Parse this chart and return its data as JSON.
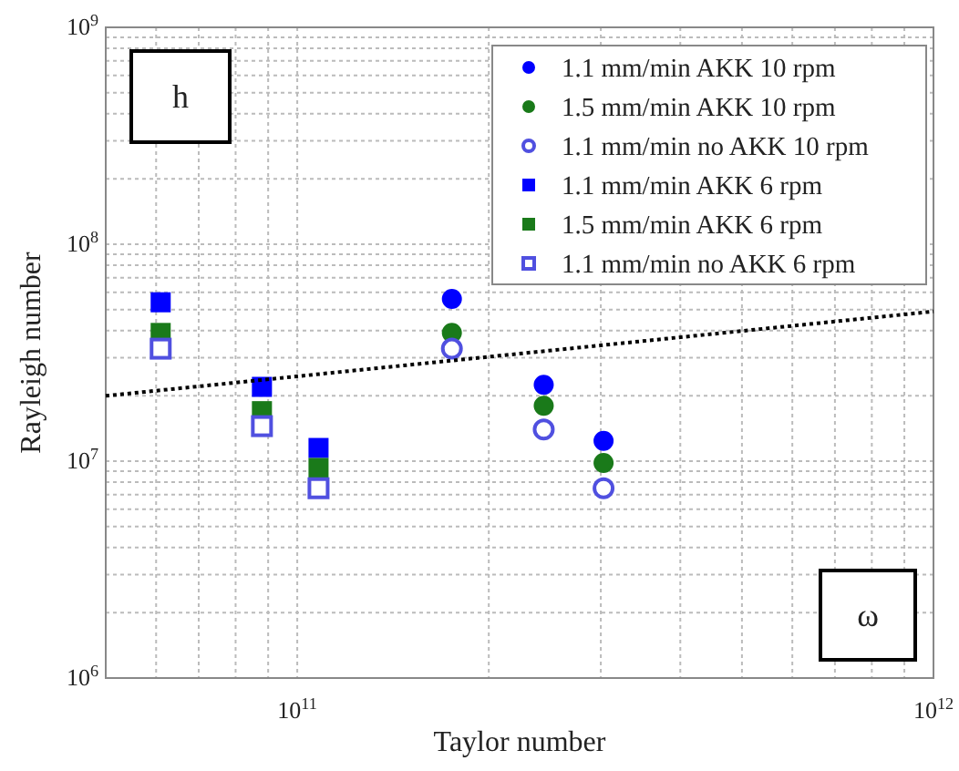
{
  "chart_data": {
    "type": "scatter",
    "xlabel": "Taylor number",
    "ylabel": "Rayleigh number",
    "log": "xy",
    "grid": true,
    "legend": "top right",
    "xlim": [
      50000000000.0,
      1000000000000.0
    ],
    "xticks": [
      {
        "value": 60000000000.0,
        "label": null
      },
      {
        "value": 70000000000.0,
        "label": null
      },
      {
        "value": 80000000000.0,
        "label": null
      },
      {
        "value": 90000000000.0,
        "label": null
      },
      {
        "value": 100000000000.0,
        "label": "10$^{11}$"
      },
      {
        "value": 200000000000.0,
        "label": null
      },
      {
        "value": 300000000000.0,
        "label": null
      },
      {
        "value": 400000000000.0,
        "label": null
      },
      {
        "value": 500000000000.0,
        "label": null
      },
      {
        "value": 600000000000.0,
        "label": null
      },
      {
        "value": 700000000000.0,
        "label": null
      },
      {
        "value": 800000000000.0,
        "label": null
      },
      {
        "value": 900000000000.0,
        "label": null
      },
      {
        "value": 1000000000000.0,
        "label": "10$^{12}$"
      }
    ],
    "ylim": [
      1000000.0,
      1000000000.0
    ],
    "yticks": [
      {
        "value": 1000000.0,
        "label": "10$^{6}$"
      },
      {
        "value": 2000000.0,
        "label": null
      },
      {
        "value": 3000000.0,
        "label": null
      },
      {
        "value": 4000000.0,
        "label": null
      },
      {
        "value": 5000000.0,
        "label": null
      },
      {
        "value": 6000000.0,
        "label": null
      },
      {
        "value": 7000000.0,
        "label": null
      },
      {
        "value": 8000000.0,
        "label": null
      },
      {
        "value": 9000000.0,
        "label": null
      },
      {
        "value": 10000000.0,
        "label": "10$^{7}$"
      },
      {
        "value": 20000000.0,
        "label": null
      },
      {
        "value": 30000000.0,
        "label": null
      },
      {
        "value": 40000000.0,
        "label": null
      },
      {
        "value": 50000000.0,
        "label": null
      },
      {
        "value": 60000000.0,
        "label": null
      },
      {
        "value": 70000000.0,
        "label": null
      },
      {
        "value": 80000000.0,
        "label": null
      },
      {
        "value": 90000000.0,
        "label": null
      },
      {
        "value": 100000000.0,
        "label": "10$^{8}$"
      },
      {
        "value": 200000000.0,
        "label": null
      },
      {
        "value": 300000000.0,
        "label": null
      },
      {
        "value": 400000000.0,
        "label": null
      },
      {
        "value": 500000000.0,
        "label": null
      },
      {
        "value": 600000000.0,
        "label": null
      },
      {
        "value": 700000000.0,
        "label": null
      },
      {
        "value": 800000000.0,
        "label": null
      },
      {
        "value": 900000000.0,
        "label": null
      },
      {
        "value": 1000000000.0,
        "label": "10$^{9}$"
      }
    ],
    "series": [
      {
        "name": "1.1 mm/min AKK 10 rpm",
        "color": "#0000ff",
        "marker": "circle",
        "x": [
          175000000000.0,
          244000000000.0,
          303000000000.0
        ],
        "values": [
          56000000.0,
          22500000.0,
          12400000.0
        ]
      },
      {
        "name": "1.5 mm/min AKK 10 rpm",
        "color": "#1a7a1a",
        "marker": "circle",
        "x": [
          175000000000.0,
          244000000000.0,
          303000000000.0
        ],
        "values": [
          39000000.0,
          18000000.0,
          9800000.0
        ]
      },
      {
        "name": "1.1 mm/min no AKK 10 rpm",
        "color": "#5050e0",
        "marker": "circle-open",
        "x": [
          175000000000.0,
          244000000000.0,
          303000000000.0
        ],
        "values": [
          33000000.0,
          14000000.0,
          7500000.0
        ]
      },
      {
        "name": "1.1 mm/min AKK 6 rpm",
        "color": "#0000ff",
        "marker": "square",
        "x": [
          61000000000.0,
          88000000000.0,
          108000000000.0
        ],
        "values": [
          54000000.0,
          22000000.0,
          11500000.0
        ]
      },
      {
        "name": "1.5 mm/min AKK 6 rpm",
        "color": "#1a7a1a",
        "marker": "square",
        "x": [
          61000000000.0,
          88000000000.0,
          108000000000.0
        ],
        "values": [
          39000000.0,
          17000000.0,
          9300000.0
        ]
      },
      {
        "name": "1.1 mm/min no AKK 6 rpm",
        "color": "#5050e0",
        "marker": "square-open",
        "x": [
          61000000000.0,
          88000000000.0,
          108000000000.0
        ],
        "values": [
          33000000.0,
          14500000.0,
          7500000.0
        ]
      },
      {
        "type": "line",
        "color": "#000000",
        "line_style": "dotted",
        "marker": "none",
        "x": [
          50000000000.0,
          1000000000000.0
        ],
        "values": [
          20000000.0,
          49000000.0
        ]
      }
    ],
    "annotations": [
      "h",
      "ω"
    ]
  }
}
